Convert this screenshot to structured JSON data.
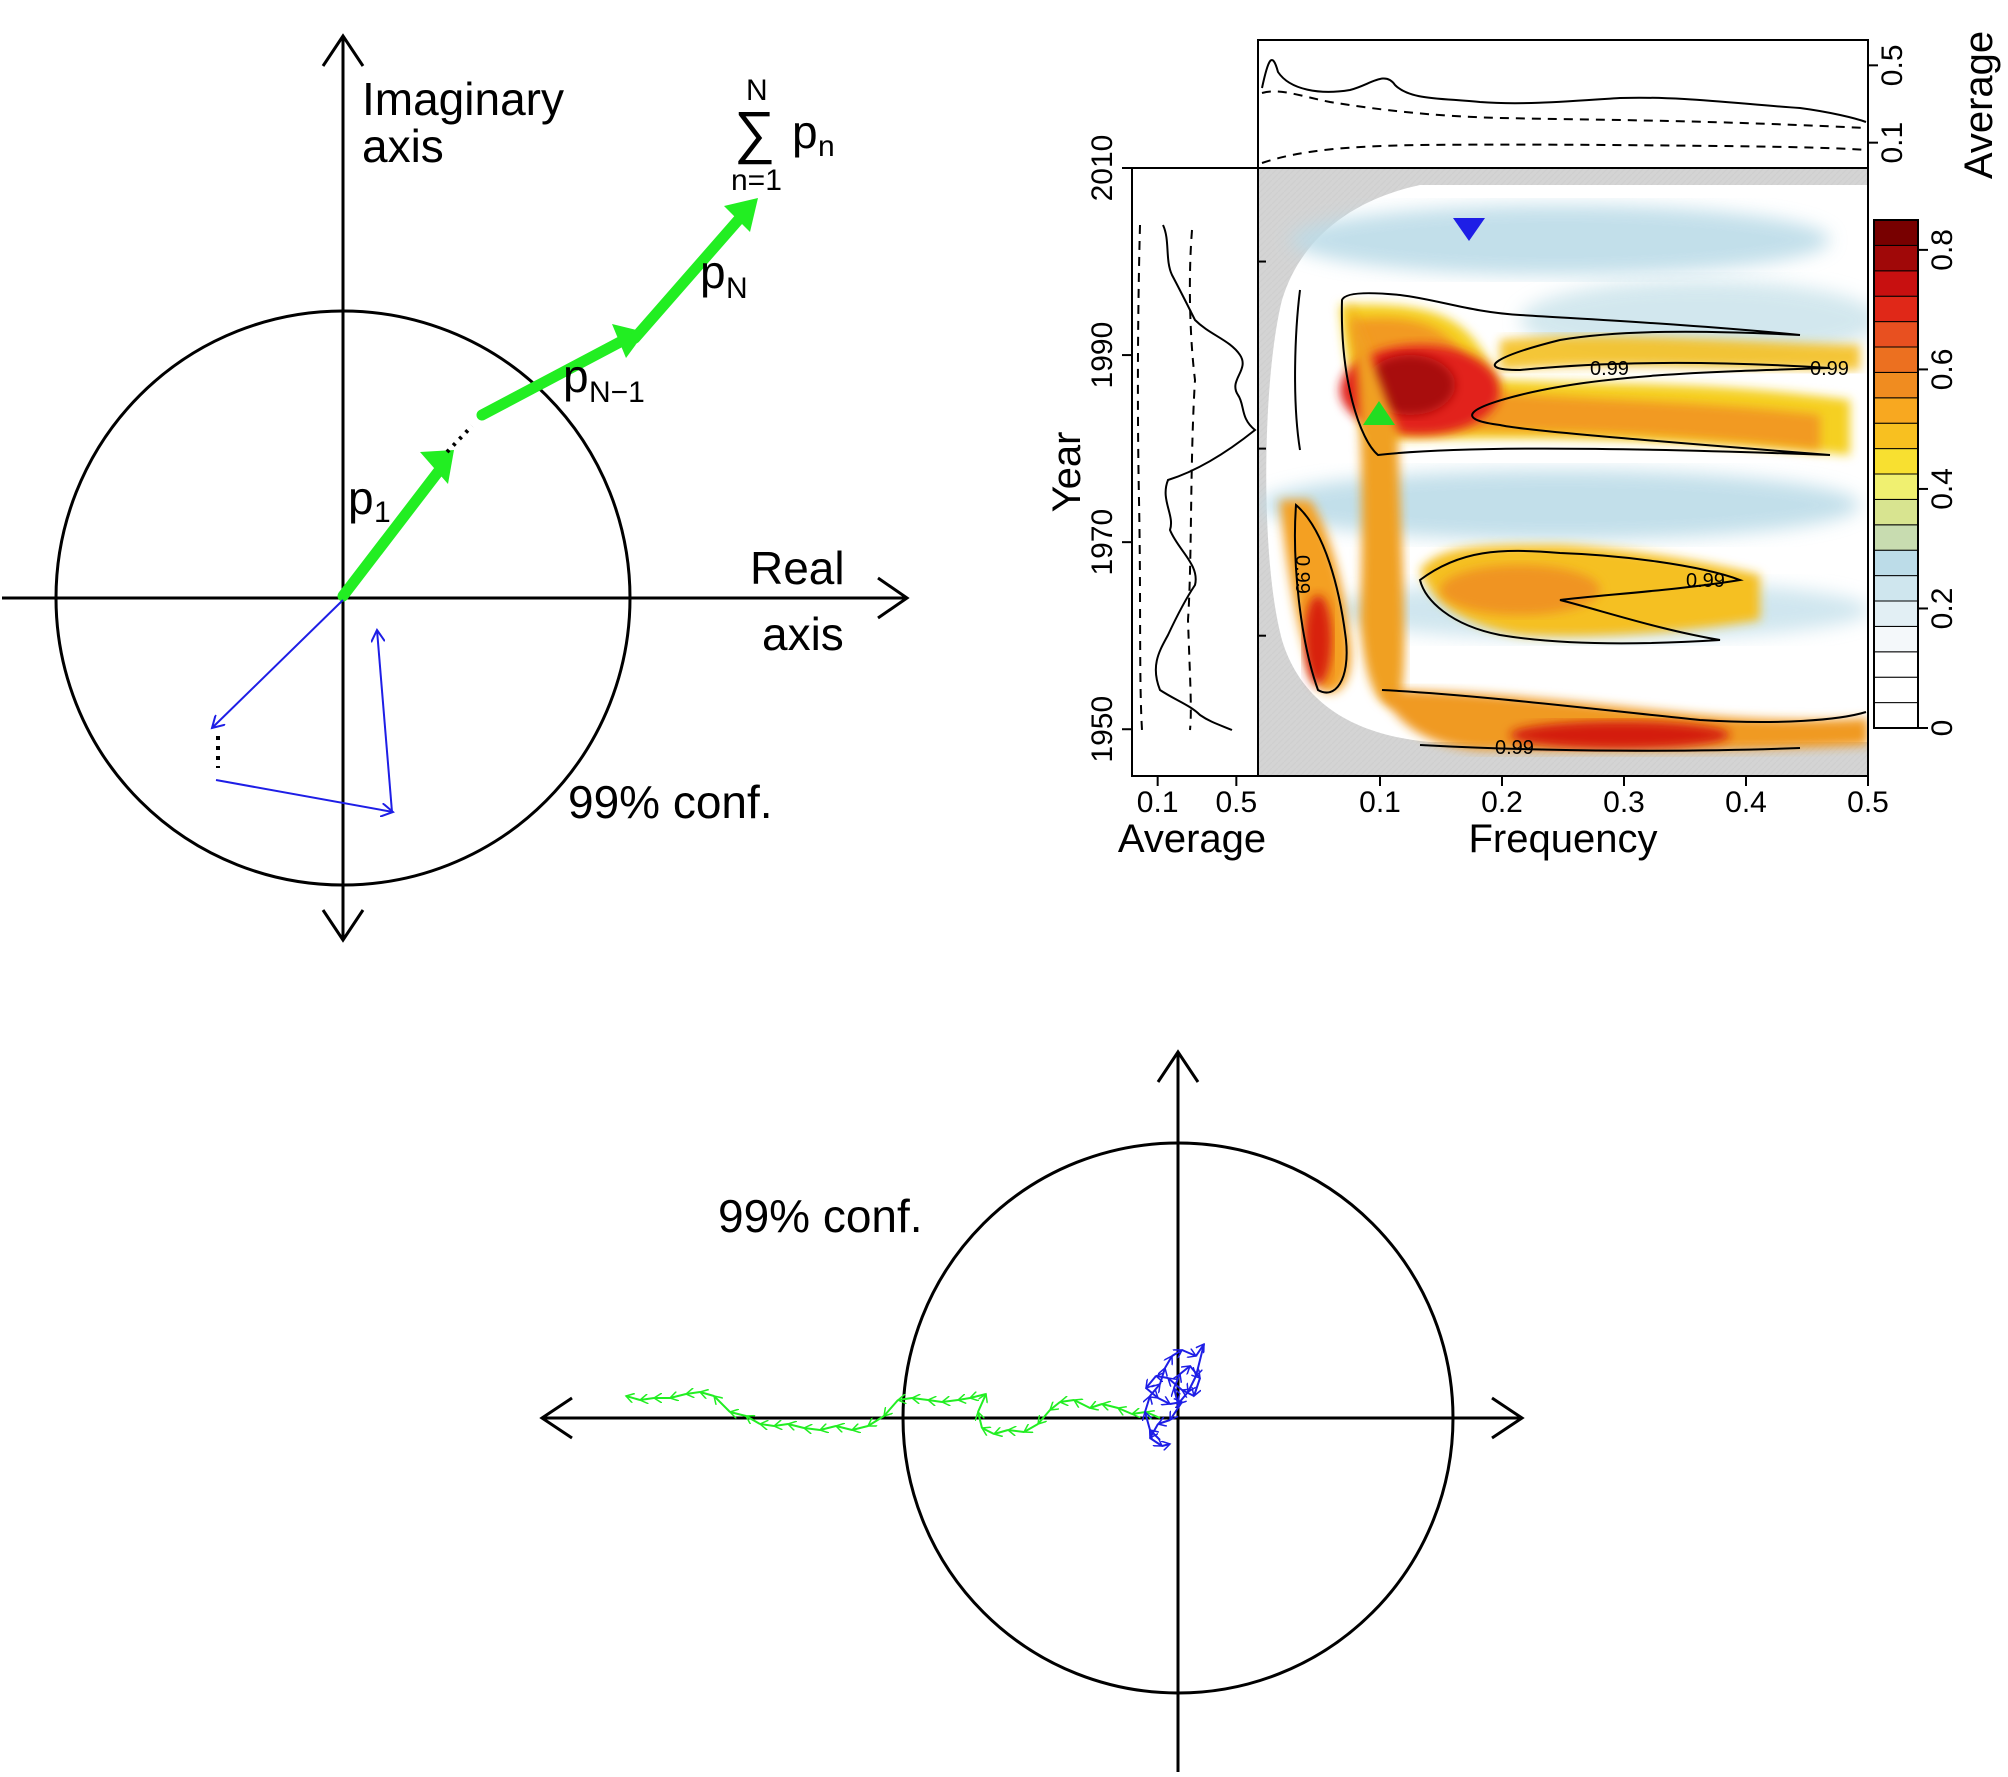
{
  "top_left_diagram": {
    "imag_axis_label": [
      "Imaginary",
      "axis"
    ],
    "real_axis_label": [
      "Real",
      "axis"
    ],
    "conf_label": "99% conf.",
    "sum_top": "N",
    "sum_symbol": "∑",
    "sum_bottom": "n=1",
    "sum_term": "p",
    "sum_term_sub": "n",
    "p1": "p",
    "p1_sub": "1",
    "pN": "p",
    "pN_sub": "N",
    "pN1": "p",
    "pN1_sub": "N−1",
    "green_color": "#22ee22",
    "blue_color": "#1e1ee6"
  },
  "spectrum_panel": {
    "x_axis_label": "Frequency",
    "y_axis_label": "Year",
    "left_avg_label": "Average",
    "top_avg_label": "Average",
    "x_ticks": [
      "0.1",
      "0.2",
      "0.3",
      "0.4",
      "0.5"
    ],
    "y_ticks": [
      "1950",
      "1970",
      "1990",
      "2010"
    ],
    "left_avg_ticks": [
      "0.1",
      "0.5"
    ],
    "top_avg_ticks": [
      "0.1",
      "0.5"
    ],
    "colorbar_ticks": [
      "0",
      "0.2",
      "0.4",
      "0.6",
      "0.8"
    ],
    "contour_labels": [
      "0.99",
      "0.99",
      "0.99",
      "0.99",
      "0.99"
    ],
    "marker_up_color": "#22dd22",
    "marker_down_color": "#1e1ee6"
  },
  "bottom_diagram": {
    "conf_label": "99% conf.",
    "green_color": "#22ee22",
    "blue_color": "#1e1ee6"
  },
  "chart_data": {
    "type": "heatmap",
    "xlabel": "Frequency",
    "ylabel": "Year",
    "xlim": [
      0,
      0.5
    ],
    "ylim": [
      1945,
      2010
    ],
    "colorbar_range": [
      0,
      0.85
    ],
    "contour_level": 0.99,
    "bands": [
      {
        "year": 1985,
        "freq_range": [
          0.07,
          0.45
        ],
        "peak": 0.8
      },
      {
        "year": 1965,
        "freq_range": [
          0.13,
          0.3
        ],
        "peak": 0.45
      },
      {
        "year": 1948,
        "freq_range": [
          0.08,
          0.5
        ],
        "peak": 0.7
      }
    ],
    "markers": [
      {
        "shape": "up-triangle",
        "freq": 0.11,
        "year": 1983
      },
      {
        "shape": "down-triangle",
        "freq": 0.175,
        "year": 2003
      }
    ]
  }
}
